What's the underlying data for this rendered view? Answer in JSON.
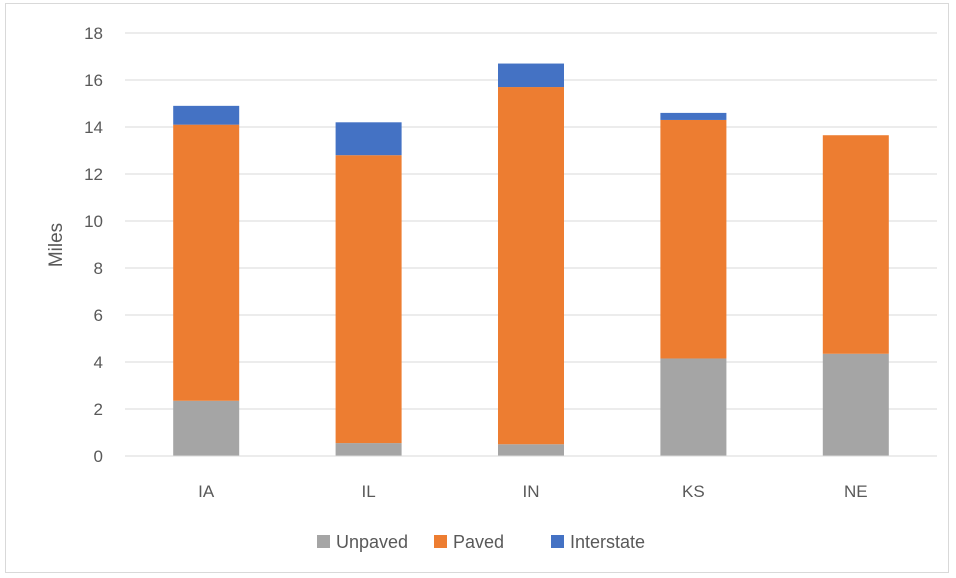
{
  "chart_data": {
    "type": "bar",
    "stacked": true,
    "categories": [
      "IA",
      "IL",
      "IN",
      "KS",
      "NE"
    ],
    "series": [
      {
        "name": "Unpaved",
        "color": "#a5a5a5",
        "values": [
          2.35,
          0.55,
          0.5,
          4.15,
          4.35
        ]
      },
      {
        "name": "Paved",
        "color": "#ed7d31",
        "values": [
          11.75,
          12.25,
          15.2,
          10.15,
          9.3
        ]
      },
      {
        "name": "Interstate",
        "color": "#4472c4",
        "values": [
          0.8,
          1.4,
          1.0,
          0.3,
          0.0
        ]
      }
    ],
    "ylabel": "Miles",
    "xlabel": "",
    "title": "",
    "ylim": [
      0,
      18
    ],
    "yticks": [
      "0",
      "2",
      "4",
      "6",
      "8",
      "10",
      "12",
      "14",
      "16",
      "18"
    ],
    "grid": true,
    "legend_position": "bottom"
  }
}
